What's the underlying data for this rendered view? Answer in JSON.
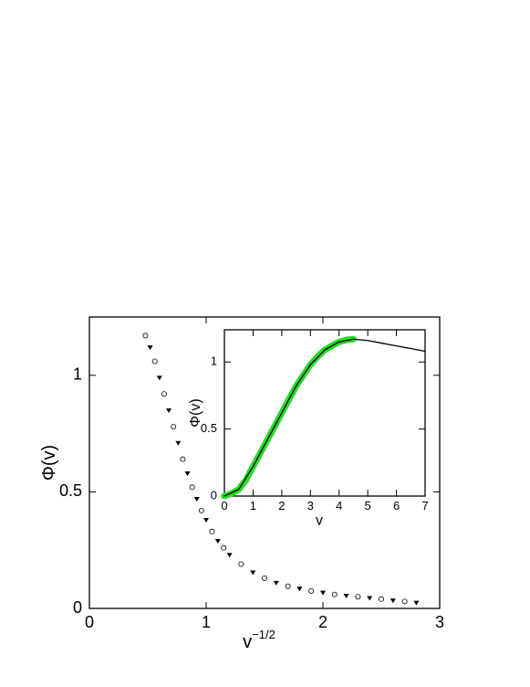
{
  "chart_data": [
    {
      "type": "scatter",
      "xlabel": "v",
      "xlabel_sup": "−1/2",
      "ylabel": "Φ(v)",
      "xlim": [
        0,
        3
      ],
      "ylim": [
        0,
        1.25
      ],
      "xticks": [
        0,
        1,
        2,
        3
      ],
      "yticks": [
        0,
        0.5,
        1
      ],
      "series": [
        {
          "color": "#000000",
          "x": [
            0.48,
            0.52,
            0.56,
            0.6,
            0.64,
            0.68,
            0.72,
            0.76,
            0.8,
            0.84,
            0.88,
            0.92,
            0.96,
            1.0,
            1.05,
            1.1,
            1.15,
            1.2,
            1.3,
            1.4,
            1.5,
            1.6,
            1.7,
            1.8,
            1.9,
            2.0,
            2.1,
            2.2,
            2.3,
            2.4,
            2.5,
            2.6,
            2.7,
            2.8
          ],
          "values": [
            1.17,
            1.12,
            1.06,
            0.99,
            0.92,
            0.85,
            0.78,
            0.71,
            0.64,
            0.58,
            0.52,
            0.47,
            0.42,
            0.38,
            0.33,
            0.29,
            0.26,
            0.23,
            0.19,
            0.155,
            0.13,
            0.11,
            0.095,
            0.085,
            0.075,
            0.068,
            0.06,
            0.055,
            0.05,
            0.045,
            0.04,
            0.035,
            0.03,
            0.025
          ]
        }
      ]
    },
    {
      "type": "line",
      "xlabel": "v",
      "ylabel": "Φ(v)",
      "xlim": [
        0,
        7
      ],
      "ylim": [
        0,
        1.24
      ],
      "xticks": [
        0,
        1,
        2,
        3,
        4,
        5,
        6,
        7
      ],
      "yticks": [
        0,
        0.5,
        1
      ],
      "series": [
        {
          "color": "#22dd22",
          "width": 7,
          "x": [
            0,
            0.25,
            0.5,
            0.75,
            1,
            1.25,
            1.5,
            1.75,
            2,
            2.25,
            2.5,
            2.75,
            3,
            3.25,
            3.5,
            3.75,
            4,
            4.25,
            4.5
          ],
          "values": [
            0,
            0.02,
            0.05,
            0.12,
            0.22,
            0.32,
            0.42,
            0.52,
            0.62,
            0.72,
            0.82,
            0.9,
            0.98,
            1.04,
            1.09,
            1.12,
            1.15,
            1.165,
            1.17
          ]
        },
        {
          "color": "#000000",
          "width": 1.3,
          "x": [
            0,
            0.5,
            1,
            1.5,
            2,
            2.5,
            3,
            3.5,
            4,
            4.5,
            5,
            5.5,
            6,
            6.5,
            7
          ],
          "values": [
            0,
            0.05,
            0.22,
            0.42,
            0.62,
            0.82,
            0.98,
            1.09,
            1.15,
            1.17,
            1.16,
            1.14,
            1.12,
            1.1,
            1.08
          ]
        }
      ]
    }
  ]
}
